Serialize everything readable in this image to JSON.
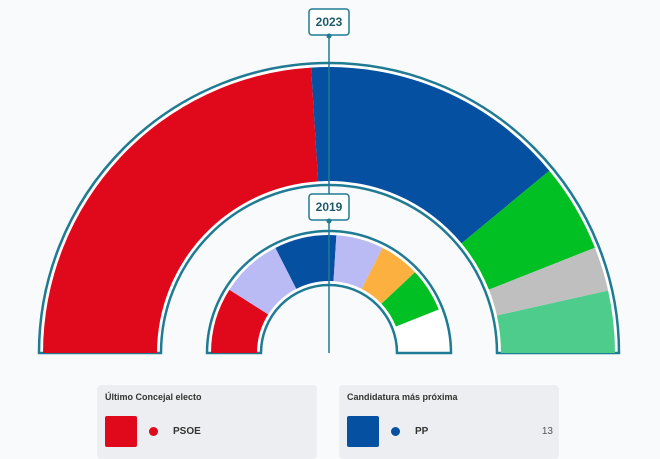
{
  "colors": {
    "frame": "#1f7a93",
    "label_border": "#1f7a93",
    "label_text": "#1f5a6b"
  },
  "chart_data": [
    {
      "type": "pie",
      "variant": "hemicycle",
      "label": "2023",
      "slices": [
        {
          "party": "PSOE",
          "fraction": 0.48,
          "color": "#e0081b"
        },
        {
          "party": "PP",
          "fraction": 0.3,
          "color": "#0550a0"
        },
        {
          "party": "",
          "fraction": 0.1,
          "color": "#00c024"
        },
        {
          "party": "",
          "fraction": 0.05,
          "color": "#bfbfbf"
        },
        {
          "party": "",
          "fraction": 0.07,
          "color": "#4dcc8c"
        }
      ]
    },
    {
      "type": "pie",
      "variant": "hemicycle",
      "label": "2019",
      "slices": [
        {
          "party": "PSOE",
          "fraction": 0.18,
          "color": "#e0081b"
        },
        {
          "party": "",
          "fraction": 0.17,
          "color": "#babaf4"
        },
        {
          "party": "PP",
          "fraction": 0.17,
          "color": "#0550a0"
        },
        {
          "party": "",
          "fraction": 0.13,
          "color": "#babaf4"
        },
        {
          "party": "",
          "fraction": 0.11,
          "color": "#fbb040"
        },
        {
          "party": "",
          "fraction": 0.12,
          "color": "#00c024"
        }
      ]
    }
  ],
  "cards": {
    "last": {
      "title": "Último Concejal electo",
      "party": "PSOE",
      "color": "#e0081b",
      "seats": ""
    },
    "next": {
      "title": "Candidatura más próxima",
      "party": "PP",
      "color": "#0550a0",
      "seats": "13"
    }
  }
}
